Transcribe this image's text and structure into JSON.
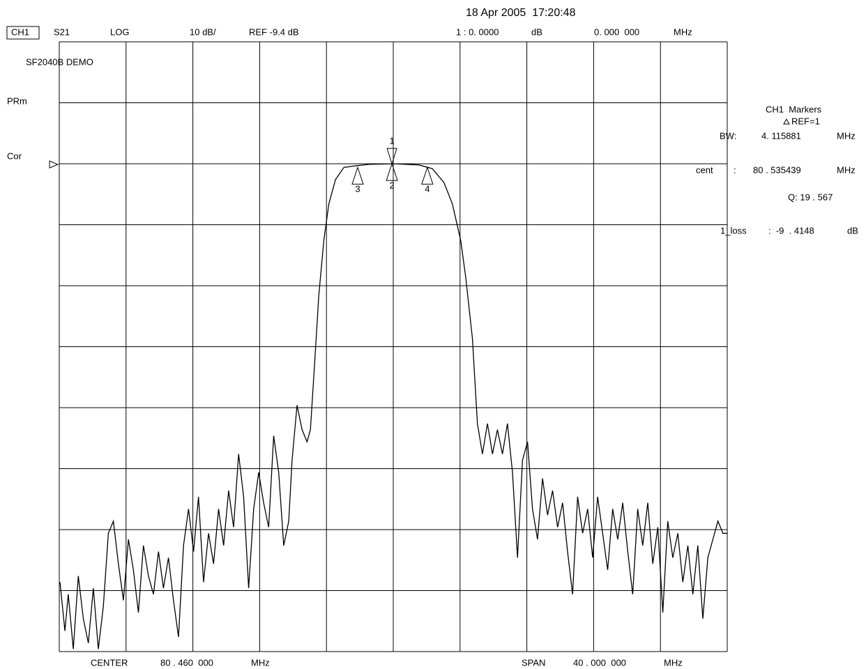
{
  "chart_data": {
    "type": "line",
    "color": "#000000",
    "date": "18 Apr 2005  17:20:48",
    "header": [
      "CH1",
      "S21",
      "LOG",
      "10 dB/",
      "REF -9.4 dB",
      "1 : 0. 0000",
      "dB",
      "0. 000  000",
      "MHz"
    ],
    "side": [
      "SF2040B DEMO",
      "PRm",
      "Cor"
    ],
    "panel": [
      "CH1  Markers",
      "REF=1",
      "BW:",
      "4. 115881",
      "MHz",
      "cent",
      ":",
      "80 . 535439",
      "MHz",
      "Q: 19 . 567",
      "1_loss",
      ":  -9  . 4148",
      "dB"
    ],
    "footer": [
      "CENTER",
      "80 . 460  000",
      "MHz",
      "SPAN",
      "40 . 000  000",
      "MHz"
    ],
    "xlim": [
      60.46,
      100.46
    ],
    "ylim": [
      -89.4,
      10.6
    ],
    "xticks": [
      60.46,
      64.46,
      68.46,
      72.46,
      76.46,
      80.46,
      84.46,
      88.46,
      92.46,
      96.46,
      100.46
    ],
    "yticks": [
      -89.4,
      -79.4,
      -69.4,
      -59.4,
      -49.4,
      -39.4,
      -29.4,
      -19.4,
      -9.4,
      0.6,
      10.6
    ],
    "grid": true,
    "x": [
      60.5,
      60.8,
      61.0,
      61.3,
      61.6,
      61.9,
      62.2,
      62.5,
      62.8,
      63.1,
      63.4,
      63.7,
      64.0,
      64.3,
      64.6,
      64.9,
      65.2,
      65.5,
      65.8,
      66.1,
      66.4,
      66.7,
      67.0,
      67.3,
      67.6,
      67.9,
      68.2,
      68.5,
      68.8,
      69.1,
      69.4,
      69.7,
      70.0,
      70.3,
      70.6,
      70.9,
      71.2,
      71.5,
      71.8,
      72.1,
      72.4,
      72.7,
      73.0,
      73.3,
      73.6,
      73.9,
      74.2,
      74.4,
      74.7,
      75.0,
      75.3,
      75.5,
      75.8,
      76.0,
      76.3,
      76.6,
      77.0,
      77.5,
      78.0,
      79.0,
      80.5,
      82.0,
      82.8,
      83.5,
      84.0,
      84.5,
      84.8,
      85.2,
      85.5,
      85.8,
      86.1,
      86.4,
      86.7,
      87.0,
      87.3,
      87.6,
      87.9,
      88.2,
      88.5,
      88.8,
      89.1,
      89.4,
      89.7,
      90.0,
      90.3,
      90.6,
      90.9,
      91.2,
      91.5,
      91.8,
      92.1,
      92.4,
      92.7,
      93.0,
      93.3,
      93.6,
      93.9,
      94.2,
      94.5,
      94.8,
      95.1,
      95.4,
      95.7,
      96.0,
      96.3,
      96.6,
      96.9,
      97.2,
      97.5,
      97.8,
      98.1,
      98.4,
      98.7,
      99.0,
      99.3,
      99.6,
      99.9,
      100.2,
      100.46
    ],
    "values": [
      -78,
      -86,
      -80,
      -89,
      -77,
      -84,
      -88,
      -79,
      -89,
      -82,
      -70,
      -68,
      -75,
      -81,
      -71,
      -76,
      -83,
      -72,
      -77,
      -80,
      -73,
      -79,
      -74,
      -81,
      -87,
      -72,
      -66,
      -73,
      -64,
      -78,
      -70,
      -75,
      -66,
      -72,
      -63,
      -69,
      -57,
      -64,
      -79,
      -66,
      -60,
      -65,
      -69,
      -54,
      -60,
      -72,
      -68,
      -58,
      -49,
      -53,
      -55,
      -53,
      -40,
      -31,
      -22,
      -16,
      -12,
      -10,
      -9.8,
      -9.5,
      -9.4,
      -9.6,
      -10.2,
      -12.5,
      -16,
      -22,
      -28,
      -38,
      -52,
      -57,
      -52,
      -57,
      -53,
      -57,
      -52,
      -60,
      -74,
      -58,
      -55,
      -66,
      -71,
      -61,
      -67,
      -63,
      -69,
      -65,
      -73,
      -80,
      -64,
      -70,
      -66,
      -74,
      -64,
      -70,
      -76,
      -66,
      -71,
      -65,
      -73,
      -80,
      -66,
      -72,
      -65,
      -75,
      -69,
      -83,
      -68,
      -74,
      -70,
      -78,
      -72,
      -80,
      -72,
      -84,
      -74,
      -71,
      -68,
      -70,
      -70
    ],
    "markers": [
      {
        "label": "1",
        "x": 80.38,
        "y": -9.4
      },
      {
        "label": "2",
        "x": 80.38,
        "y": -9.4
      },
      {
        "label": "3",
        "x": 78.33,
        "y": -10.0
      },
      {
        "label": "4",
        "x": 82.5,
        "y": -10.0
      }
    ]
  }
}
